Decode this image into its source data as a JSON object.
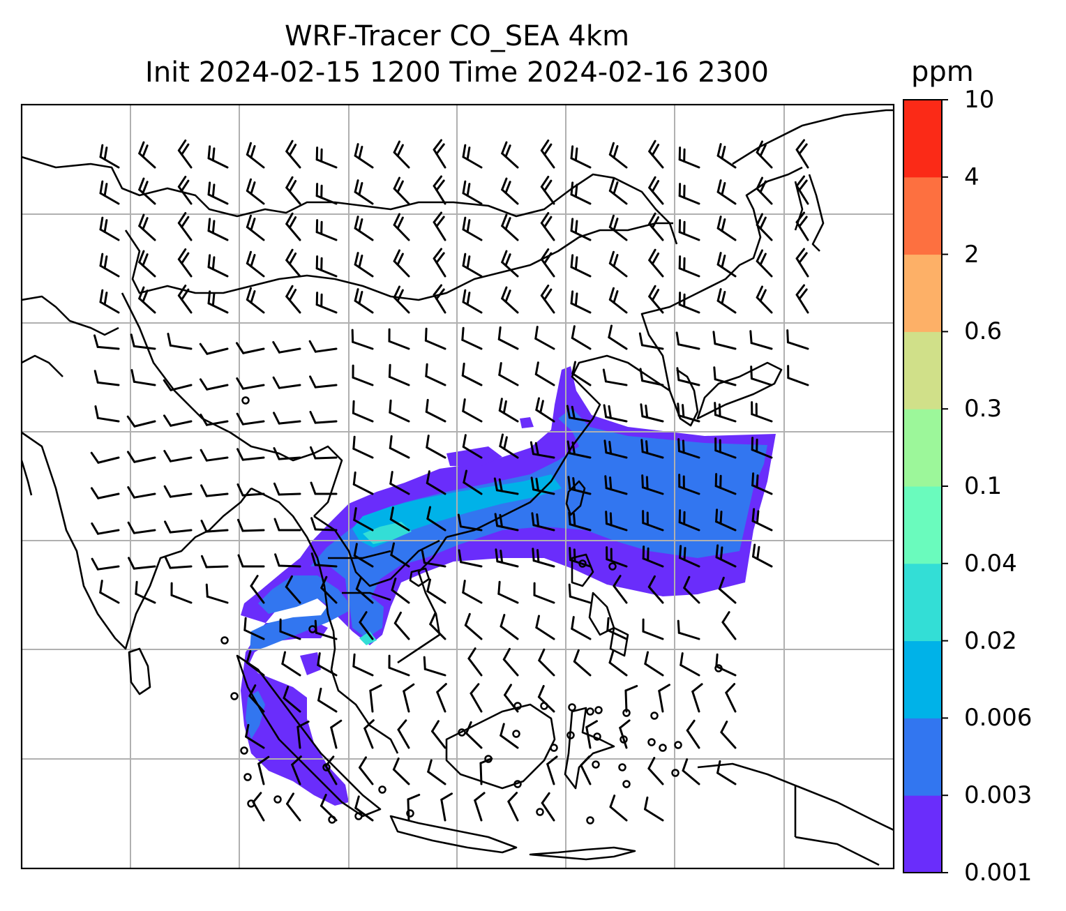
{
  "title": {
    "line1": "WRF-Tracer CO_SEA 4km",
    "line2": "Init 2024-02-15 1200 Time 2024-02-16 2300"
  },
  "colorbar": {
    "unit": "ppm",
    "levels": [
      "0.001",
      "0.003",
      "0.006",
      "0.02",
      "0.04",
      "0.1",
      "0.3",
      "0.6",
      "2",
      "4",
      "10"
    ],
    "colors": [
      "#6a2dfb",
      "#3276f0",
      "#00b2e8",
      "#33ded6",
      "#6afbbd",
      "#9cf79a",
      "#d0e089",
      "#fdb067",
      "#fd7040",
      "#fb2a17"
    ]
  },
  "plume": {
    "colors": {
      "outer": "#6a2dfb",
      "mid": "#3276f0",
      "inner": "#00b2e8",
      "core": "#33ded6"
    }
  },
  "map": {
    "grid_color": "#b0b0b0",
    "coast_color": "#000000",
    "wind_field": "barbs"
  }
}
